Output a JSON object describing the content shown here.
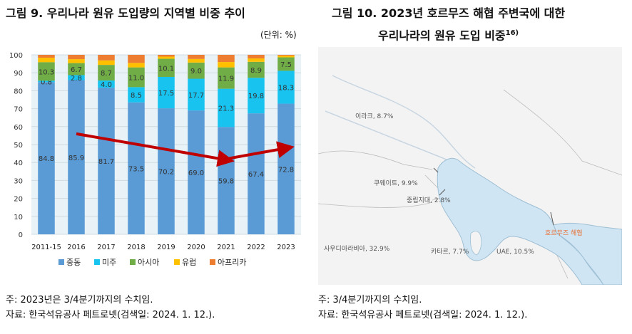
{
  "left": {
    "title": "그림 9.   우리나라 원유 도입량의 지역별 비중 추이",
    "unit": "(단위: %)",
    "note": "주: 2023년은 3/4분기까지의 수치임.",
    "source": "자료: 한국석유공사 페트로넷(검색일: 2024. 1. 12.)."
  },
  "right": {
    "title_line1": "그림 10. 2023년 호르무즈 해협 주변국에 대한",
    "title_line2": "우리나라의 원유 도입 비중",
    "title_sup": "16)",
    "note": "주: 3/4분기까지의 수치임.",
    "source": "자료: 한국석유공사 페트로넷(검색일: 2024. 1. 12.).",
    "map_labels": [
      {
        "text": "이라크, 8.7%",
        "color": "#555555"
      },
      {
        "text": "쿠웨이트, 9.9%",
        "color": "#555555"
      },
      {
        "text": "중립지대, 2.8%",
        "color": "#555555"
      },
      {
        "text": "사우디아라비아, 32.9%",
        "color": "#555555"
      },
      {
        "text": "카타르, 7.7%",
        "color": "#555555"
      },
      {
        "text": "UAE, 10.5%",
        "color": "#555555"
      },
      {
        "text": "호르무즈 해협",
        "color": "#e8733a"
      }
    ]
  },
  "chart_data": {
    "type": "bar",
    "stacked": true,
    "categories": [
      "2011-15",
      "2016",
      "2017",
      "2018",
      "2019",
      "2020",
      "2021",
      "2022",
      "2023"
    ],
    "ylim": [
      0,
      100
    ],
    "yticks": [
      0,
      10,
      20,
      30,
      40,
      50,
      60,
      70,
      80,
      90,
      100
    ],
    "grid": true,
    "legend_position": "bottom",
    "series": [
      {
        "name": "중동",
        "color": "#5b9bd5",
        "values": [
          84.8,
          85.9,
          81.7,
          73.5,
          70.2,
          69.0,
          59.8,
          67.4,
          72.8
        ]
      },
      {
        "name": "미주",
        "color": "#19c3f0",
        "values": [
          0.8,
          2.8,
          4.0,
          8.5,
          17.5,
          17.7,
          21.3,
          19.8,
          18.3
        ]
      },
      {
        "name": "아시아",
        "color": "#70ad47",
        "values": [
          10.3,
          6.7,
          8.7,
          11.0,
          10.1,
          9.0,
          11.9,
          8.9,
          7.5
        ]
      },
      {
        "name": "유럽",
        "color": "#ffc000",
        "values": [
          2.5,
          2.2,
          2.5,
          2.5,
          1.2,
          2.0,
          3.0,
          1.9,
          0.9
        ]
      },
      {
        "name": "아프리카",
        "color": "#ed7d31",
        "values": [
          1.6,
          2.4,
          3.1,
          4.5,
          1.0,
          2.3,
          4.0,
          2.0,
          0.5
        ]
      }
    ],
    "labeled_series": [
      "중동",
      "미주",
      "아시아"
    ],
    "trend_arrows": [
      {
        "from": [
          "2016",
          56
        ],
        "to": [
          "2021",
          41.5
        ]
      },
      {
        "from": [
          "2021",
          42
        ],
        "to": [
          "2023",
          48
        ]
      }
    ],
    "arrow_color": "#c00000"
  }
}
